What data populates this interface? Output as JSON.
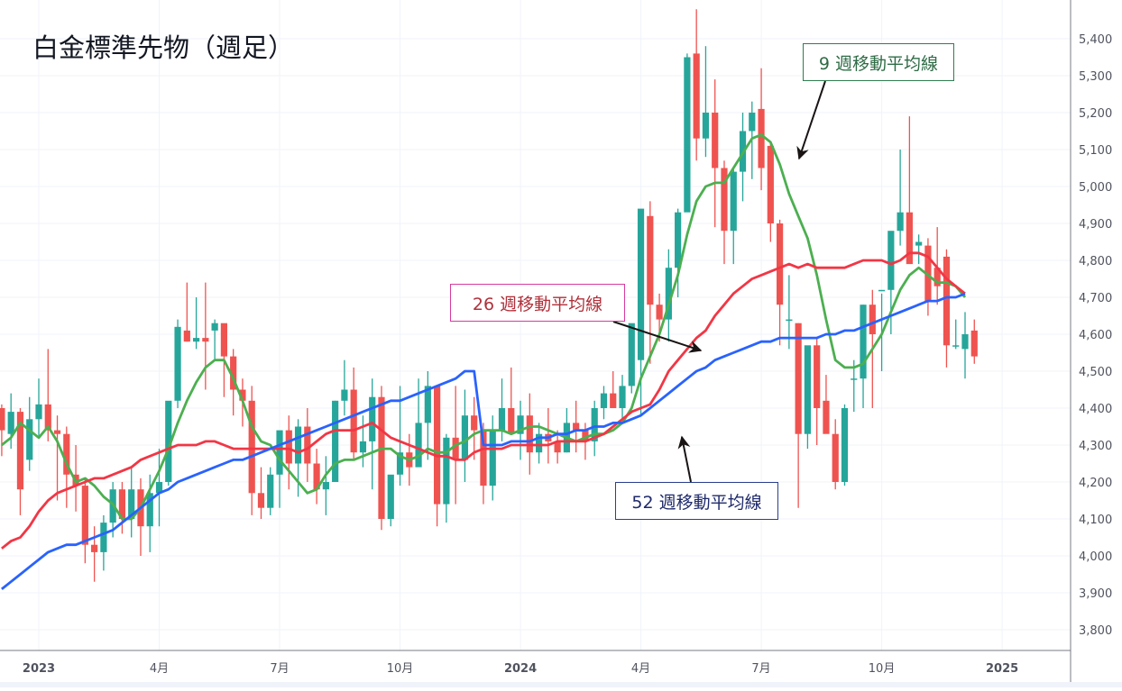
{
  "title": "白金標準先物（週足）",
  "callouts": {
    "ma9": {
      "label": "9 週移動平均線",
      "border": "#2e7d4f",
      "text_color": "#2e6b45"
    },
    "ma26": {
      "label": "26 週移動平均線",
      "border": "#d63aa0",
      "text_color": "#b0303a"
    },
    "ma52": {
      "label": "52 週移動平均線",
      "border": "#2a3f8f",
      "text_color": "#1f2a6b"
    }
  },
  "colors": {
    "up": "#26a69a",
    "down": "#ef5350",
    "ma9": "#4caf50",
    "ma26": "#f23645",
    "ma52": "#2962ff",
    "grid": "#f0f3fa",
    "axis_text": "#50535e",
    "axis_line": "#787b86"
  },
  "chart_data": {
    "type": "candlestick",
    "title": "白金標準先物（週足）",
    "xlabel": "",
    "ylabel": "",
    "ylim": [
      3760,
      5480
    ],
    "y_ticks": [
      3800,
      3900,
      4000,
      4100,
      4200,
      4300,
      4400,
      4500,
      4600,
      4700,
      4800,
      4900,
      5000,
      5100,
      5200,
      5300,
      5400
    ],
    "y_tick_labels": [
      "3,800",
      "3,900",
      "4,000",
      "4,100",
      "4,200",
      "4,300",
      "4,400",
      "4,500",
      "4,600",
      "4,700",
      "4,800",
      "4,900",
      "5,000",
      "5,100",
      "5,200",
      "5,300",
      "5,400"
    ],
    "x_ticks": [
      {
        "label": "2023",
        "week": 0,
        "bold": true
      },
      {
        "label": "4月",
        "week": 13,
        "bold": false
      },
      {
        "label": "7月",
        "week": 26,
        "bold": false
      },
      {
        "label": "10月",
        "week": 39,
        "bold": false
      },
      {
        "label": "2024",
        "week": 52,
        "bold": true
      },
      {
        "label": "4月",
        "week": 65,
        "bold": false
      },
      {
        "label": "7月",
        "week": 78,
        "bold": false
      },
      {
        "label": "10月",
        "week": 91,
        "bold": false
      },
      {
        "label": "2025",
        "week": 104,
        "bold": true
      }
    ],
    "legend": [
      "9 週移動平均線",
      "26 週移動平均線",
      "52 週移動平均線"
    ],
    "grid": true,
    "candles": [
      [
        4400,
        4410,
        4270,
        4340
      ],
      [
        4330,
        4440,
        4290,
        4390
      ],
      [
        4390,
        4400,
        4110,
        4180
      ],
      [
        4260,
        4430,
        4230,
        4370
      ],
      [
        4370,
        4480,
        4320,
        4410
      ],
      [
        4410,
        4560,
        4310,
        4340
      ],
      [
        4340,
        4380,
        4150,
        4330
      ],
      [
        4330,
        4350,
        4130,
        4220
      ],
      [
        4220,
        4300,
        4120,
        4190
      ],
      [
        4190,
        4210,
        3980,
        4030
      ],
      [
        4030,
        4080,
        3930,
        4010
      ],
      [
        4010,
        4110,
        3960,
        4090
      ],
      [
        4090,
        4200,
        4050,
        4180
      ],
      [
        4180,
        4200,
        4060,
        4100
      ],
      [
        4100,
        4240,
        4050,
        4180
      ],
      [
        4180,
        4210,
        4000,
        4080
      ],
      [
        4080,
        4220,
        4010,
        4170
      ],
      [
        4170,
        4290,
        4080,
        4200
      ],
      [
        4200,
        4360,
        4190,
        4420
      ],
      [
        4420,
        4640,
        4400,
        4620
      ],
      [
        4610,
        4740,
        4580,
        4580
      ],
      [
        4580,
        4700,
        4560,
        4590
      ],
      [
        4590,
        4740,
        4450,
        4580
      ],
      [
        4610,
        4640,
        4530,
        4630
      ],
      [
        4630,
        4600,
        4430,
        4540
      ],
      [
        4540,
        4560,
        4380,
        4450
      ],
      [
        4450,
        4480,
        4350,
        4420
      ],
      [
        4420,
        4460,
        4110,
        4170
      ],
      [
        4170,
        4240,
        4100,
        4130
      ],
      [
        4130,
        4240,
        4110,
        4220
      ],
      [
        4220,
        4310,
        4130,
        4340
      ],
      [
        4340,
        4380,
        4180,
        4250
      ],
      [
        4250,
        4370,
        4160,
        4350
      ],
      [
        4350,
        4400,
        4200,
        4250
      ],
      [
        4250,
        4290,
        4140,
        4180
      ],
      [
        4180,
        4270,
        4110,
        4200
      ],
      [
        4200,
        4420,
        4200,
        4420
      ],
      [
        4420,
        4530,
        4380,
        4450
      ],
      [
        4450,
        4510,
        4260,
        4280
      ],
      [
        4280,
        4380,
        4240,
        4310
      ],
      [
        4310,
        4480,
        4180,
        4430
      ],
      [
        4430,
        4460,
        4070,
        4100
      ],
      [
        4100,
        4210,
        4080,
        4220
      ],
      [
        4220,
        4460,
        4190,
        4280
      ],
      [
        4280,
        4330,
        4190,
        4240
      ],
      [
        4240,
        4480,
        4260,
        4360
      ],
      [
        4360,
        4500,
        4260,
        4460
      ],
      [
        4460,
        4460,
        4080,
        4140
      ],
      [
        4140,
        4330,
        4090,
        4320
      ],
      [
        4320,
        4460,
        4140,
        4260
      ],
      [
        4260,
        4450,
        4200,
        4380
      ],
      [
        4380,
        4430,
        4260,
        4340
      ],
      [
        4340,
        4360,
        4140,
        4190
      ],
      [
        4190,
        4380,
        4150,
        4340
      ],
      [
        4340,
        4480,
        4310,
        4400
      ],
      [
        4400,
        4510,
        4370,
        4330
      ],
      [
        4330,
        4420,
        4260,
        4380
      ],
      [
        4380,
        4440,
        4220,
        4280
      ],
      [
        4280,
        4360,
        4250,
        4330
      ],
      [
        4330,
        4400,
        4250,
        4310
      ],
      [
        4310,
        4340,
        4250,
        4280
      ],
      [
        4280,
        4400,
        4280,
        4360
      ],
      [
        4360,
        4420,
        4280,
        4340
      ],
      [
        4340,
        4360,
        4260,
        4310
      ],
      [
        4310,
        4420,
        4270,
        4400
      ],
      [
        4400,
        4460,
        4370,
        4440
      ],
      [
        4440,
        4500,
        4400,
        4400
      ],
      [
        4400,
        4490,
        4370,
        4460
      ],
      [
        4460,
        4590,
        4440,
        4630
      ],
      [
        4530,
        4870,
        4380,
        4940
      ],
      [
        4920,
        4960,
        4520,
        4680
      ],
      [
        4680,
        4710,
        4580,
        4640
      ],
      [
        4640,
        4830,
        4580,
        4780
      ],
      [
        4780,
        4940,
        4700,
        4930
      ],
      [
        4930,
        5360,
        4940,
        5350
      ],
      [
        5360,
        5480,
        5070,
        5130
      ],
      [
        5130,
        5380,
        5080,
        5200
      ],
      [
        5200,
        5290,
        4890,
        5050
      ],
      [
        5050,
        5070,
        4790,
        4880
      ],
      [
        4880,
        5050,
        4790,
        5040
      ],
      [
        5040,
        5200,
        4960,
        5150
      ],
      [
        5150,
        5230,
        5020,
        5200
      ],
      [
        5210,
        5320,
        4990,
        5050
      ],
      [
        5110,
        5120,
        4850,
        4900
      ],
      [
        4900,
        4910,
        4570,
        4680
      ],
      [
        4640,
        4760,
        4560,
        4640
      ],
      [
        4630,
        4630,
        4130,
        4330
      ],
      [
        4330,
        4520,
        4290,
        4570
      ],
      [
        4570,
        4590,
        4300,
        4400
      ],
      [
        4420,
        4490,
        4350,
        4330
      ],
      [
        4330,
        4370,
        4180,
        4200
      ],
      [
        4200,
        4410,
        4190,
        4400
      ],
      [
        4480,
        4530,
        4390,
        4480
      ],
      [
        4480,
        4680,
        4400,
        4680
      ],
      [
        4680,
        4720,
        4400,
        4600
      ],
      [
        4720,
        4710,
        4500,
        4720
      ],
      [
        4720,
        4760,
        4600,
        4880
      ],
      [
        4880,
        5100,
        4840,
        4930
      ],
      [
        4930,
        5190,
        4810,
        4790
      ],
      [
        4840,
        4870,
        4790,
        4850
      ],
      [
        4840,
        4860,
        4650,
        4690
      ],
      [
        4780,
        4890,
        4680,
        4730
      ],
      [
        4810,
        4830,
        4510,
        4570
      ],
      [
        4570,
        4640,
        4560,
        4570
      ],
      [
        4560,
        4660,
        4480,
        4600
      ],
      [
        4610,
        4640,
        4520,
        4540
      ]
    ],
    "series": [
      {
        "name": "9 週移動平均線",
        "type": "line",
        "values": [
          4300,
          4320,
          4360,
          4340,
          4320,
          4350,
          4310,
          4250,
          4200,
          4210,
          4190,
          4160,
          4140,
          4100,
          4100,
          4130,
          4180,
          4230,
          4290,
          4360,
          4420,
          4470,
          4510,
          4530,
          4530,
          4480,
          4420,
          4350,
          4310,
          4300,
          4260,
          4230,
          4200,
          4170,
          4180,
          4220,
          4250,
          4260,
          4260,
          4270,
          4280,
          4290,
          4290,
          4270,
          4260,
          4270,
          4290,
          4280,
          4280,
          4300,
          4310,
          4330,
          4340,
          4340,
          4340,
          4330,
          4340,
          4350,
          4350,
          4340,
          4330,
          4320,
          4310,
          4320,
          4330,
          4330,
          4340,
          4360,
          4400,
          4480,
          4540,
          4600,
          4680,
          4760,
          4870,
          4960,
          5000,
          5010,
          5010,
          5050,
          5090,
          5130,
          5140,
          5120,
          5060,
          4980,
          4920,
          4860,
          4760,
          4640,
          4530,
          4510,
          4510,
          4520,
          4560,
          4600,
          4660,
          4720,
          4760,
          4780,
          4760,
          4740,
          4740,
          4730,
          4700
        ]
      },
      {
        "name": "26 週移動平均線",
        "type": "line",
        "values": [
          4020,
          4040,
          4050,
          4080,
          4120,
          4150,
          4170,
          4180,
          4190,
          4200,
          4210,
          4210,
          4220,
          4230,
          4240,
          4260,
          4270,
          4280,
          4290,
          4300,
          4300,
          4300,
          4310,
          4310,
          4300,
          4290,
          4290,
          4290,
          4290,
          4290,
          4290,
          4290,
          4280,
          4290,
          4310,
          4330,
          4340,
          4340,
          4340,
          4350,
          4360,
          4340,
          4320,
          4310,
          4300,
          4290,
          4280,
          4270,
          4270,
          4260,
          4260,
          4280,
          4290,
          4290,
          4290,
          4300,
          4300,
          4300,
          4300,
          4300,
          4310,
          4310,
          4310,
          4310,
          4320,
          4330,
          4350,
          4370,
          4390,
          4400,
          4410,
          4450,
          4500,
          4530,
          4560,
          4590,
          4610,
          4650,
          4680,
          4710,
          4730,
          4750,
          4760,
          4770,
          4780,
          4790,
          4780,
          4790,
          4780,
          4780,
          4780,
          4780,
          4790,
          4800,
          4800,
          4800,
          4790,
          4800,
          4820,
          4820,
          4810,
          4780,
          4750,
          4730,
          4710
        ]
      },
      {
        "name": "52 週移動平均線",
        "type": "line",
        "values": [
          3910,
          3930,
          3950,
          3970,
          3990,
          4010,
          4020,
          4030,
          4030,
          4040,
          4050,
          4060,
          4070,
          4090,
          4110,
          4130,
          4150,
          4170,
          4180,
          4200,
          4210,
          4220,
          4230,
          4240,
          4250,
          4260,
          4260,
          4270,
          4280,
          4290,
          4300,
          4310,
          4320,
          4330,
          4340,
          4350,
          4360,
          4370,
          4380,
          4390,
          4400,
          4410,
          4420,
          4420,
          4430,
          4440,
          4450,
          4460,
          4470,
          4480,
          4500,
          4500,
          4300,
          4300,
          4300,
          4310,
          4310,
          4310,
          4320,
          4320,
          4330,
          4330,
          4340,
          4340,
          4350,
          4350,
          4360,
          4360,
          4370,
          4380,
          4400,
          4420,
          4440,
          4460,
          4480,
          4500,
          4510,
          4530,
          4540,
          4550,
          4560,
          4570,
          4580,
          4580,
          4590,
          4590,
          4590,
          4590,
          4590,
          4600,
          4600,
          4610,
          4610,
          4620,
          4630,
          4640,
          4650,
          4660,
          4670,
          4680,
          4690,
          4690,
          4700,
          4700,
          4710
        ]
      }
    ]
  }
}
